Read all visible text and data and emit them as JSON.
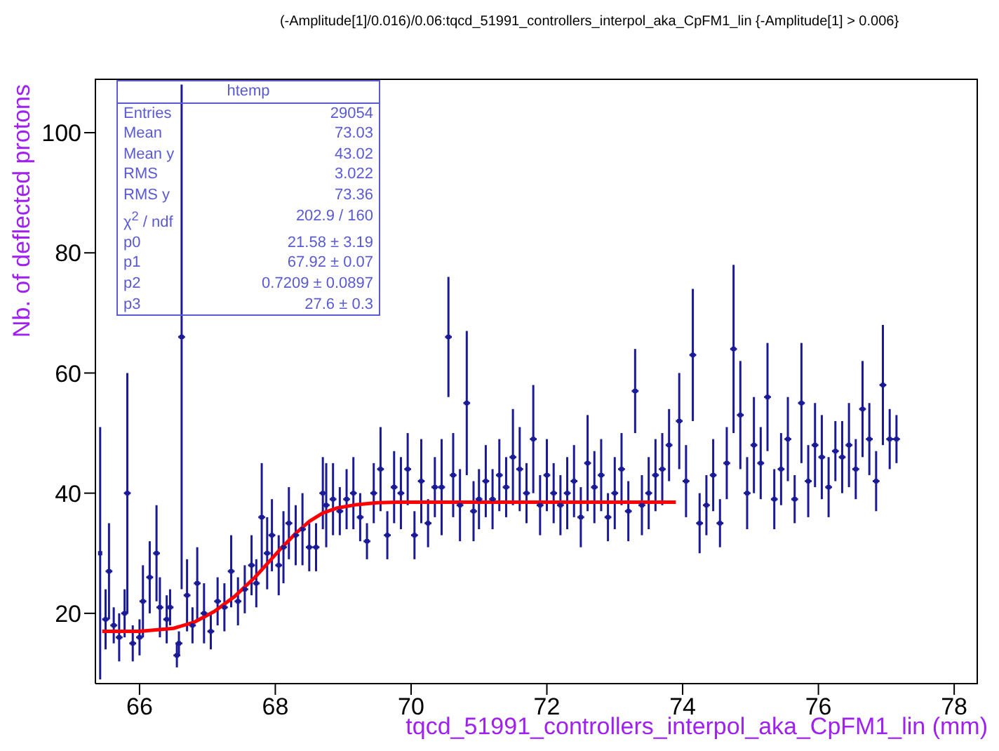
{
  "chart_data": {
    "type": "scatter",
    "title": "(-Amplitude[1]/0.016)/0.06:tqcd_51991_controllers_interpol_aka_CpFM1_lin {-Amplitude[1] > 0.006}",
    "xlabel": "tqcd_51991_controllers_interpol_aka_CpFM1_lin (mm)",
    "ylabel": "Nb. of deflected protons",
    "xlim": [
      65.35,
      78.35
    ],
    "ylim": [
      8.3,
      109
    ],
    "xticks": [
      66,
      68,
      70,
      72,
      74,
      76,
      78
    ],
    "yticks": [
      20,
      40,
      60,
      80,
      100
    ],
    "annotations": [
      "htemp",
      "Entries",
      "29054",
      "Mean",
      "73.03",
      "Mean y",
      "43.02",
      "RMS",
      "3.022",
      "RMS y",
      "73.36",
      "χ$^{2}$ / ndf",
      "202.9 / 160",
      "p0",
      "21.58 ± 3.19",
      "p1",
      "67.92 ± 0.07",
      "p2",
      "0.7209 ± 0.0897",
      "p3",
      "27.6 ± 0.3"
    ],
    "series": [
      {
        "type": "scatter",
        "marker": "square",
        "color": "#1a1a96",
        "xerrors": [
          null,
          0.05,
          0.05,
          0.05,
          0.05,
          0.05,
          0.05,
          0.05,
          0.05,
          0.05,
          0.05,
          0.05,
          0.05,
          0.05,
          0.05,
          0.05,
          0.05,
          0.05,
          0.05,
          0.05,
          0.05,
          0.05,
          0.05,
          0.05,
          0.05,
          0.05,
          0.05,
          0.05,
          0.05,
          0.05,
          0.05,
          0.05,
          0.05,
          0.05,
          0.05,
          0.05,
          0.05,
          0.05,
          0.05,
          0.05,
          0.05,
          0.05,
          0.05,
          0.05,
          0.05,
          0.05,
          0.05,
          0.05,
          0.05,
          0.05,
          0.05,
          0.05,
          0.05,
          0.05,
          0.05,
          0.05,
          0.05,
          0.05,
          0.05,
          0.05,
          0.05,
          0.05,
          0.05,
          0.05,
          0.05,
          0.05,
          0.05,
          0.05,
          0.05,
          0.05,
          0.05,
          0.05,
          0.05,
          0.05,
          0.05,
          0.05,
          0.05,
          0.05,
          0.05,
          0.05,
          0.05,
          0.05,
          0.05,
          0.05,
          0.05,
          0.05,
          0.05,
          0.05,
          0.05,
          0.05,
          0.05,
          0.05,
          0.05,
          0.05,
          0.05,
          0.05,
          0.05,
          0.05,
          0.05,
          0.05,
          0.05,
          0.05,
          0.05,
          0.05,
          0.05,
          0.05,
          0.05,
          0.05,
          0.05,
          0.05,
          0.05,
          0.05,
          0.05,
          0.05,
          0.05,
          0.05,
          0.05,
          0.05,
          0.05,
          0.05,
          0.05,
          0.05,
          0.05,
          0.05,
          0.05,
          0.05
        ],
        "x": [
          65.42,
          65.5,
          65.55,
          65.62,
          65.7,
          65.78,
          65.82,
          65.9,
          66.0,
          66.05,
          66.15,
          66.25,
          66.3,
          66.4,
          66.45,
          66.55,
          66.58,
          66.62,
          66.7,
          66.78,
          66.85,
          66.95,
          67.05,
          67.15,
          67.25,
          67.35,
          67.45,
          67.55,
          67.65,
          67.72,
          67.8,
          67.88,
          67.95,
          68.05,
          68.12,
          68.2,
          68.3,
          68.4,
          68.5,
          68.6,
          68.7,
          68.75,
          68.85,
          68.95,
          69.05,
          69.15,
          69.25,
          69.35,
          69.45,
          69.55,
          69.65,
          69.75,
          69.85,
          69.95,
          70.05,
          70.15,
          70.25,
          70.35,
          70.45,
          70.55,
          70.62,
          70.72,
          70.82,
          70.92,
          71.0,
          71.1,
          71.2,
          71.3,
          71.4,
          71.5,
          71.6,
          71.7,
          71.8,
          71.9,
          72.0,
          72.1,
          72.2,
          72.3,
          72.4,
          72.5,
          72.6,
          72.7,
          72.8,
          72.9,
          73.0,
          73.1,
          73.2,
          73.3,
          73.4,
          73.5,
          73.6,
          73.7,
          73.8,
          73.95,
          74.05,
          74.15,
          74.25,
          74.35,
          74.45,
          74.55,
          74.65,
          74.75,
          74.85,
          74.95,
          75.05,
          75.15,
          75.25,
          75.35,
          75.45,
          75.55,
          75.65,
          75.75,
          75.85,
          75.95,
          76.05,
          76.15,
          76.25,
          76.35,
          76.45,
          76.55,
          76.65,
          76.75,
          76.85,
          76.95,
          77.05,
          77.15
        ],
        "values": [
          30,
          19,
          27,
          18,
          16,
          20,
          40,
          15,
          16,
          22,
          26,
          30,
          21,
          19,
          21,
          13,
          15,
          66,
          23,
          18,
          25,
          20,
          17,
          22,
          21,
          27,
          22,
          24,
          28,
          25,
          36,
          30,
          33,
          28,
          31,
          35,
          33,
          34,
          31,
          31,
          40,
          38,
          39,
          37,
          39,
          40,
          36,
          32,
          40,
          44,
          33,
          41,
          40,
          44,
          33,
          42,
          35,
          41,
          41,
          66,
          43,
          38,
          55,
          37,
          39,
          42,
          39,
          43,
          41,
          46,
          44,
          40,
          49,
          38,
          43,
          40,
          38,
          40,
          42,
          36,
          45,
          41,
          43,
          36,
          40,
          44,
          37,
          57,
          38,
          40,
          43,
          44,
          48,
          52,
          42,
          63,
          35,
          38,
          43,
          35,
          45,
          64,
          53,
          40,
          48,
          45,
          56,
          39,
          44,
          49,
          39,
          55,
          42,
          48,
          46,
          41,
          47,
          46,
          48,
          44,
          54,
          49,
          42,
          58,
          49,
          49
        ],
        "errors": [
          21,
          5,
          8,
          3,
          4,
          4,
          20,
          3,
          3,
          6,
          6,
          8,
          5,
          4,
          3,
          2,
          2,
          42,
          6,
          3,
          6,
          5,
          3,
          4,
          4,
          6,
          4,
          4,
          5,
          4,
          9,
          6,
          6,
          5,
          6,
          6,
          5,
          6,
          4,
          4,
          6,
          7,
          6,
          4,
          5,
          6,
          4,
          3,
          5,
          7,
          4,
          6,
          6,
          6,
          4,
          7,
          4,
          5,
          8,
          10,
          7,
          6,
          12,
          5,
          5,
          6,
          5,
          6,
          5,
          8,
          7,
          5,
          9,
          5,
          6,
          5,
          5,
          6,
          6,
          5,
          8,
          6,
          6,
          4,
          6,
          6,
          5,
          7,
          5,
          6,
          6,
          6,
          6,
          8,
          6,
          11,
          5,
          5,
          6,
          4,
          6,
          14,
          9,
          6,
          8,
          6,
          9,
          5,
          6,
          7,
          4,
          10,
          6,
          7,
          7,
          5,
          5,
          6,
          7,
          5,
          8,
          6,
          5,
          10,
          5,
          4
        ]
      },
      {
        "type": "line",
        "color": "#ff0000",
        "x": [
          65.45,
          66.0,
          66.5,
          66.8,
          67.1,
          67.4,
          67.7,
          67.9,
          68.1,
          68.3,
          68.5,
          68.7,
          68.9,
          69.2,
          69.5,
          69.8,
          70.2,
          73.9
        ],
        "values": [
          17,
          17,
          17.5,
          18.5,
          20.3,
          22.8,
          26,
          28.5,
          31,
          33.3,
          35.3,
          36.7,
          37.5,
          38.1,
          38.4,
          38.5,
          38.5,
          38.5
        ]
      }
    ]
  }
}
